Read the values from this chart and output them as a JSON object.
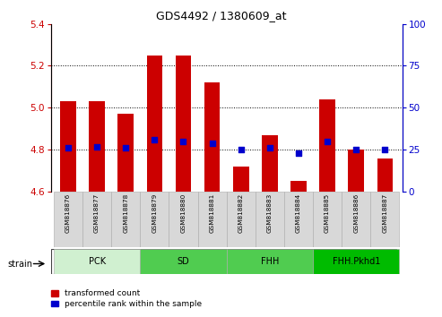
{
  "title": "GDS4492 / 1380609_at",
  "samples": [
    "GSM818876",
    "GSM818877",
    "GSM818878",
    "GSM818879",
    "GSM818880",
    "GSM818881",
    "GSM818882",
    "GSM818883",
    "GSM818884",
    "GSM818885",
    "GSM818886",
    "GSM818887"
  ],
  "transformed_count": [
    5.03,
    5.03,
    4.97,
    5.25,
    5.25,
    5.12,
    4.72,
    4.87,
    4.65,
    5.04,
    4.8,
    4.76
  ],
  "percentile_rank": [
    26,
    27,
    26,
    31,
    30,
    29,
    25,
    26,
    23,
    30,
    25,
    25
  ],
  "ylim_left": [
    4.6,
    5.4
  ],
  "ylim_right": [
    0,
    100
  ],
  "yticks_left": [
    4.6,
    4.8,
    5.0,
    5.2,
    5.4
  ],
  "yticks_right": [
    0,
    25,
    50,
    75,
    100
  ],
  "groups": [
    {
      "label": "PCK",
      "start": 0,
      "end": 2
    },
    {
      "label": "SD",
      "start": 3,
      "end": 5
    },
    {
      "label": "FHH",
      "start": 6,
      "end": 8
    },
    {
      "label": "FHH.Pkhd1",
      "start": 9,
      "end": 11
    }
  ],
  "group_colors": [
    "#d0f0d0",
    "#50cc50",
    "#50cc50",
    "#00bb00"
  ],
  "bar_color": "#cc0000",
  "dot_color": "#0000cc",
  "bar_bottom": 4.6,
  "bar_width": 0.55,
  "tick_label_color_left": "#cc0000",
  "tick_label_color_right": "#0000cc",
  "legend_red_label": "transformed count",
  "legend_blue_label": "percentile rank within the sample",
  "strain_label": "strain"
}
